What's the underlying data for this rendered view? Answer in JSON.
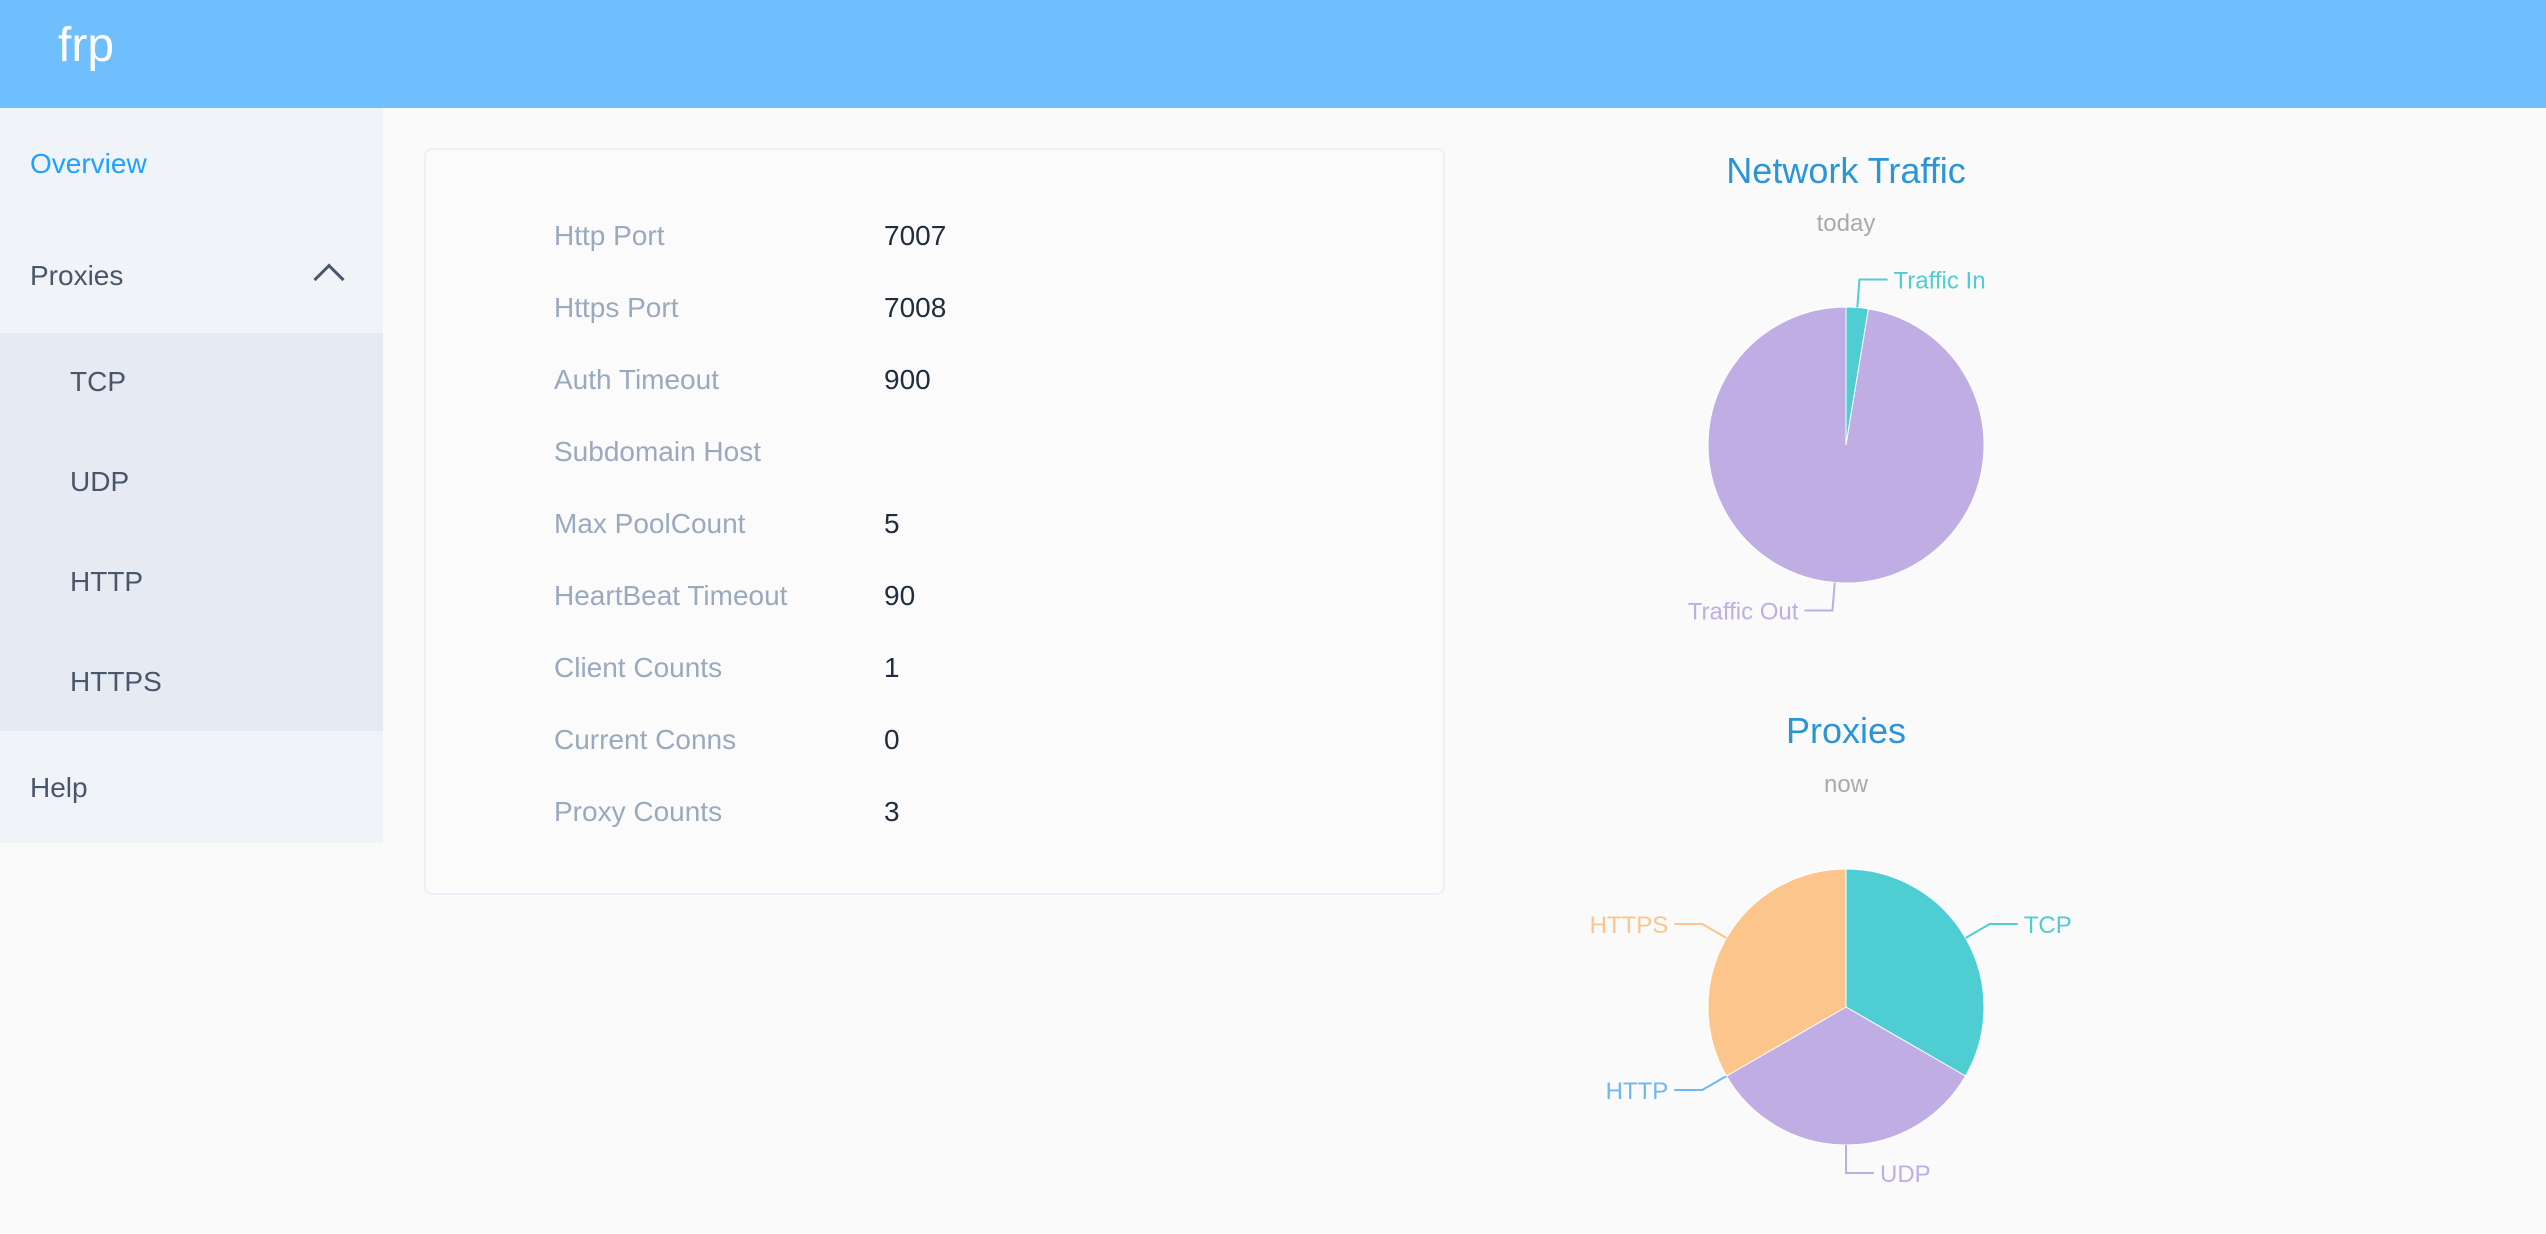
{
  "header": {
    "title": "frp"
  },
  "sidebar": {
    "overview": "Overview",
    "proxies": "Proxies",
    "sub": [
      "TCP",
      "UDP",
      "HTTP",
      "HTTPS"
    ],
    "help": "Help"
  },
  "info": [
    {
      "label": "Http Port",
      "value": "7007"
    },
    {
      "label": "Https Port",
      "value": "7008"
    },
    {
      "label": "Auth Timeout",
      "value": "900"
    },
    {
      "label": "Subdomain Host",
      "value": ""
    },
    {
      "label": "Max PoolCount",
      "value": "5"
    },
    {
      "label": "HeartBeat Timeout",
      "value": "90"
    },
    {
      "label": "Client Counts",
      "value": "1"
    },
    {
      "label": "Current Conns",
      "value": "0"
    },
    {
      "label": "Proxy Counts",
      "value": "3"
    }
  ],
  "chart_data": [
    {
      "type": "pie",
      "title": "Network Traffic",
      "subtitle": "today",
      "categories": [
        "Traffic In",
        "Traffic Out"
      ],
      "values": [
        2.6,
        97.4
      ],
      "colors": [
        "#4ecdd2",
        "#bfade3"
      ]
    },
    {
      "type": "pie",
      "title": "Proxies",
      "subtitle": "now",
      "categories": [
        "TCP",
        "UDP",
        "HTTP",
        "HTTPS"
      ],
      "values": [
        1,
        1,
        0,
        1
      ],
      "colors": [
        "#4ecdd2",
        "#bfade3",
        "#6cb8f5",
        "#fcc58b"
      ]
    }
  ]
}
